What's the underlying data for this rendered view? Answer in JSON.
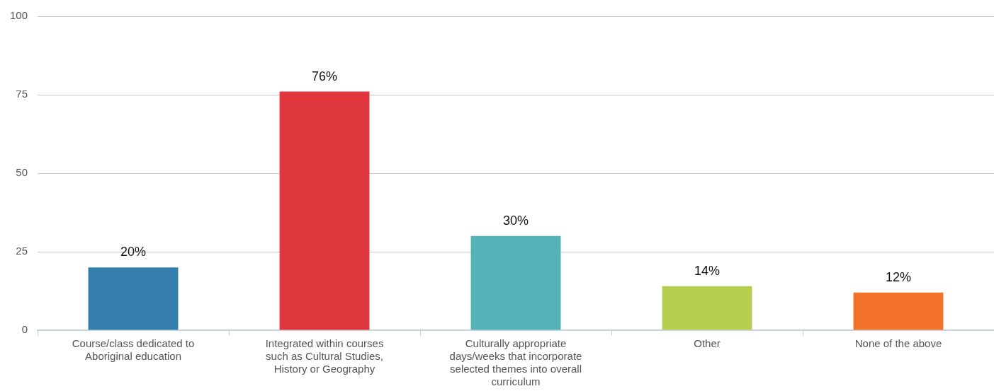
{
  "chart_data": {
    "type": "bar",
    "categories": [
      "Course/class dedicated to Aboriginal education",
      "Integrated within courses such as Cultural Studies, History or Geography",
      "Culturally appropriate days/weeks that incorporate selected themes into overall curriculum",
      "Other",
      "None of the above"
    ],
    "values": [
      20,
      76,
      30,
      14,
      12
    ],
    "colors": [
      "#337eaa",
      "#df363e",
      "#55b3b7",
      "#b5cf50",
      "#f2712b"
    ],
    "value_labels": [
      "20%",
      "76%",
      "30%",
      "14%",
      "12%"
    ],
    "ylim": [
      0,
      100
    ],
    "yticks": [
      0,
      25,
      50,
      75,
      100
    ],
    "grid": "y",
    "legend": false
  }
}
